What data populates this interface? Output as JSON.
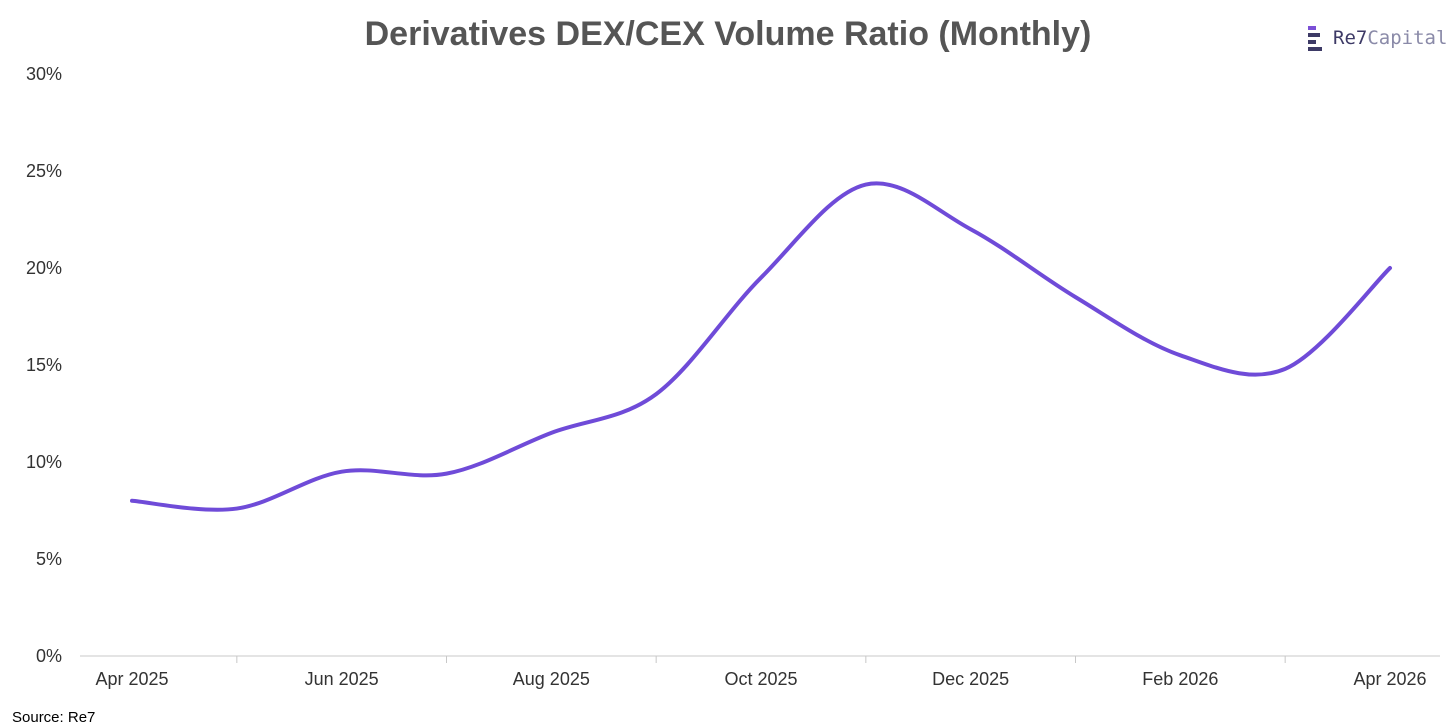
{
  "chart_data": {
    "type": "line",
    "title": "Derivatives DEX/CEX Volume Ratio (Monthly)",
    "xlabel": "",
    "ylabel": "",
    "x": [
      "2025-04",
      "2025-05",
      "2025-06",
      "2025-07",
      "2025-08",
      "2025-09",
      "2025-10",
      "2025-11",
      "2025-12",
      "2026-01",
      "2026-02",
      "2026-03",
      "2026-04"
    ],
    "x_tick_labels": [
      "Apr 2025",
      "Jun 2025",
      "Aug 2025",
      "Oct 2025",
      "Dec 2025",
      "Feb 2026",
      "Apr 2026"
    ],
    "series": [
      {
        "values": [
          8.0,
          7.6,
          9.5,
          9.4,
          11.5,
          13.5,
          19.5,
          24.3,
          22.0,
          18.5,
          15.5,
          14.8,
          20.0
        ]
      }
    ],
    "y_tick_labels": [
      "0%",
      "5%",
      "10%",
      "15%",
      "20%",
      "25%",
      "30%"
    ],
    "ylim": [
      0,
      30
    ],
    "y_unit": "%",
    "grid": false,
    "legend": "none",
    "line_color": "#6f4bd8"
  },
  "brand": {
    "name_part1": "Re7",
    "name_part2": "Capital",
    "color_dark": "#3d3a66",
    "color_light": "#8a8aa8",
    "accent": "#7b4fd6"
  },
  "source_text": "Source: Re7"
}
